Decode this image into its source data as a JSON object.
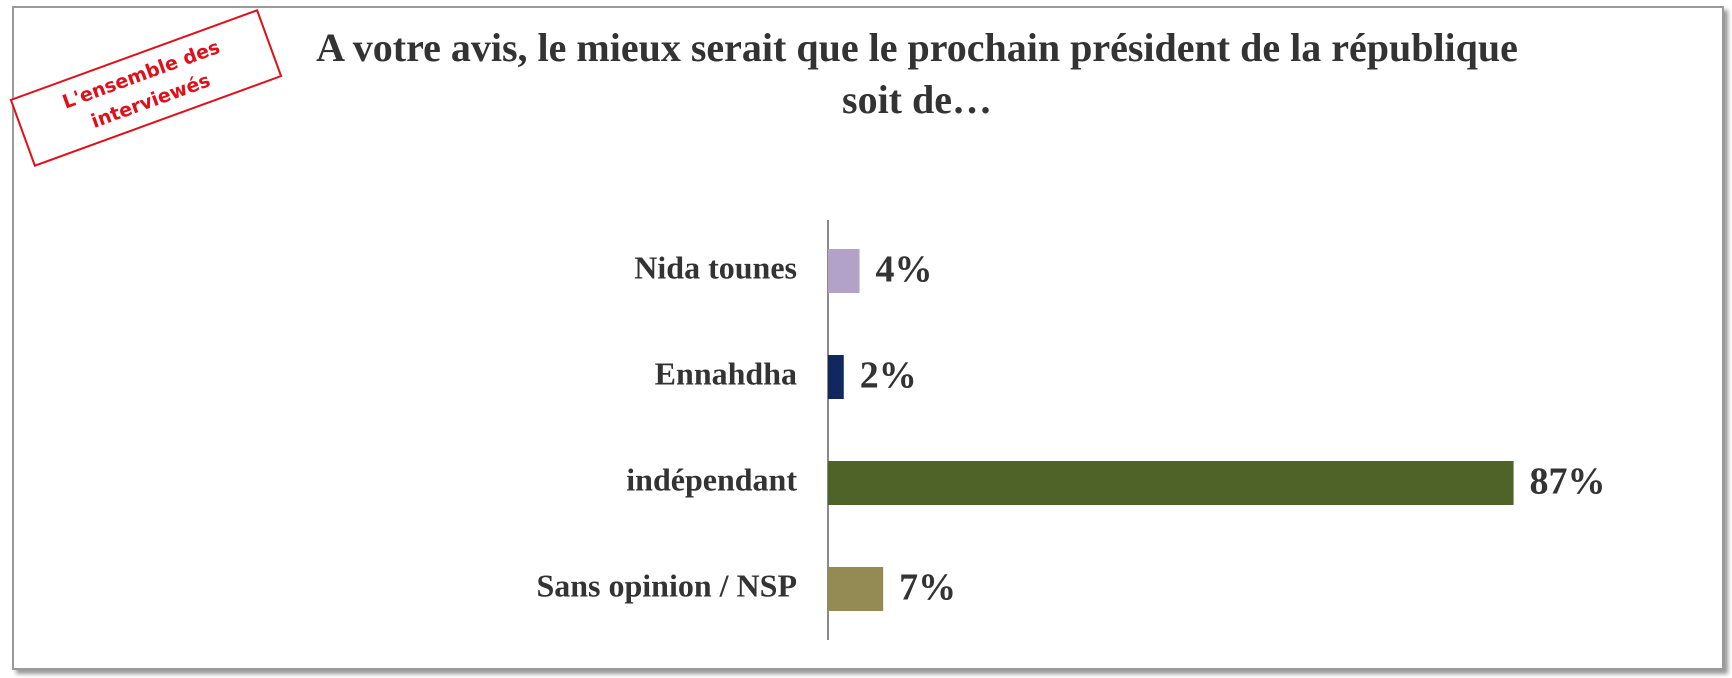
{
  "chart_data": {
    "type": "bar",
    "orientation": "horizontal",
    "title": "A votre avis, le mieux serait que le prochain président de la république soit  de…",
    "annotation": "L'ensemble des interviewés",
    "categories": [
      "Nida tounes",
      "Ennahdha",
      "indépendant",
      "Sans opinion / NSP"
    ],
    "values": [
      4,
      2,
      87,
      7
    ],
    "value_labels": [
      "4%",
      "2%",
      "87%",
      "7%"
    ],
    "colors": [
      "#b3a2c7",
      "#10285e",
      "#4f6228",
      "#948a54"
    ]
  }
}
